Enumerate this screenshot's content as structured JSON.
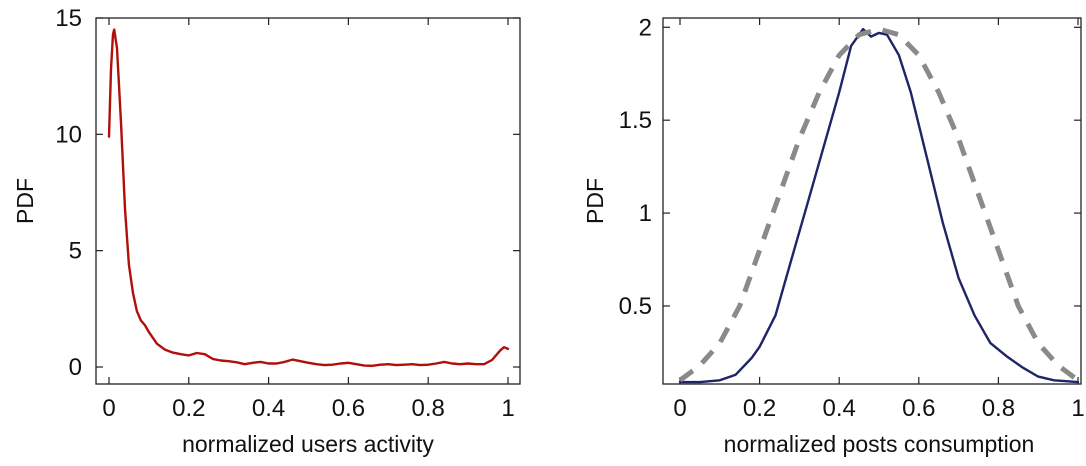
{
  "chart_data": [
    {
      "type": "line",
      "title": "",
      "xlabel": "normalized users activity",
      "ylabel": "PDF",
      "xlim": [
        0,
        1
      ],
      "ylim": [
        0,
        15
      ],
      "x_ticks": [
        "0",
        "0.2",
        "0.4",
        "0.6",
        "0.8",
        "1"
      ],
      "y_ticks": [
        "0",
        "5",
        "10",
        "15"
      ],
      "grid": false,
      "legend": "none",
      "series": [
        {
          "color": "#b00f0a",
          "style": "solid",
          "points": [
            [
              0.0,
              9.9
            ],
            [
              0.005,
              12.8
            ],
            [
              0.01,
              14.3
            ],
            [
              0.013,
              14.5
            ],
            [
              0.02,
              13.7
            ],
            [
              0.03,
              10.5
            ],
            [
              0.04,
              6.8
            ],
            [
              0.05,
              4.4
            ],
            [
              0.06,
              3.2
            ],
            [
              0.07,
              2.4
            ],
            [
              0.08,
              2.0
            ],
            [
              0.09,
              1.8
            ],
            [
              0.1,
              1.5
            ],
            [
              0.12,
              1.0
            ],
            [
              0.14,
              0.75
            ],
            [
              0.16,
              0.62
            ],
            [
              0.18,
              0.55
            ],
            [
              0.2,
              0.5
            ],
            [
              0.22,
              0.6
            ],
            [
              0.24,
              0.55
            ],
            [
              0.26,
              0.35
            ],
            [
              0.28,
              0.28
            ],
            [
              0.3,
              0.25
            ],
            [
              0.32,
              0.2
            ],
            [
              0.34,
              0.12
            ],
            [
              0.36,
              0.18
            ],
            [
              0.38,
              0.22
            ],
            [
              0.4,
              0.15
            ],
            [
              0.42,
              0.15
            ],
            [
              0.44,
              0.22
            ],
            [
              0.46,
              0.32
            ],
            [
              0.48,
              0.25
            ],
            [
              0.5,
              0.18
            ],
            [
              0.52,
              0.12
            ],
            [
              0.54,
              0.08
            ],
            [
              0.56,
              0.1
            ],
            [
              0.58,
              0.15
            ],
            [
              0.6,
              0.18
            ],
            [
              0.62,
              0.12
            ],
            [
              0.64,
              0.06
            ],
            [
              0.66,
              0.05
            ],
            [
              0.68,
              0.1
            ],
            [
              0.7,
              0.12
            ],
            [
              0.72,
              0.08
            ],
            [
              0.74,
              0.1
            ],
            [
              0.76,
              0.12
            ],
            [
              0.78,
              0.08
            ],
            [
              0.8,
              0.1
            ],
            [
              0.82,
              0.15
            ],
            [
              0.84,
              0.22
            ],
            [
              0.86,
              0.15
            ],
            [
              0.88,
              0.12
            ],
            [
              0.9,
              0.15
            ],
            [
              0.92,
              0.12
            ],
            [
              0.94,
              0.12
            ],
            [
              0.96,
              0.3
            ],
            [
              0.98,
              0.7
            ],
            [
              0.99,
              0.85
            ],
            [
              1.0,
              0.78
            ]
          ]
        }
      ]
    },
    {
      "type": "line",
      "title": "",
      "xlabel": "normalized posts consumption",
      "ylabel": "PDF",
      "xlim": [
        0,
        1
      ],
      "ylim": [
        0.08,
        2.05
      ],
      "x_ticks": [
        "0",
        "0.2",
        "0.4",
        "0.6",
        "0.8",
        "1"
      ],
      "y_ticks": [
        "0.5",
        "1",
        "1.5",
        "2"
      ],
      "grid": false,
      "legend": "none",
      "series": [
        {
          "color": "#1e2466",
          "style": "solid",
          "points": [
            [
              0.0,
              0.09
            ],
            [
              0.05,
              0.09
            ],
            [
              0.1,
              0.1
            ],
            [
              0.14,
              0.13
            ],
            [
              0.18,
              0.22
            ],
            [
              0.2,
              0.28
            ],
            [
              0.24,
              0.45
            ],
            [
              0.28,
              0.75
            ],
            [
              0.32,
              1.05
            ],
            [
              0.36,
              1.35
            ],
            [
              0.4,
              1.65
            ],
            [
              0.43,
              1.9
            ],
            [
              0.46,
              1.99
            ],
            [
              0.48,
              1.95
            ],
            [
              0.5,
              1.97
            ],
            [
              0.52,
              1.96
            ],
            [
              0.55,
              1.85
            ],
            [
              0.58,
              1.65
            ],
            [
              0.62,
              1.3
            ],
            [
              0.66,
              0.95
            ],
            [
              0.7,
              0.65
            ],
            [
              0.74,
              0.45
            ],
            [
              0.78,
              0.3
            ],
            [
              0.82,
              0.23
            ],
            [
              0.86,
              0.17
            ],
            [
              0.9,
              0.12
            ],
            [
              0.94,
              0.1
            ],
            [
              1.0,
              0.09
            ]
          ]
        },
        {
          "color": "#8a8a8a",
          "style": "dashed",
          "points": [
            [
              0.0,
              0.1
            ],
            [
              0.05,
              0.18
            ],
            [
              0.1,
              0.3
            ],
            [
              0.15,
              0.5
            ],
            [
              0.2,
              0.8
            ],
            [
              0.25,
              1.1
            ],
            [
              0.3,
              1.4
            ],
            [
              0.35,
              1.65
            ],
            [
              0.4,
              1.85
            ],
            [
              0.45,
              1.96
            ],
            [
              0.5,
              1.99
            ],
            [
              0.55,
              1.96
            ],
            [
              0.6,
              1.85
            ],
            [
              0.65,
              1.65
            ],
            [
              0.7,
              1.4
            ],
            [
              0.75,
              1.1
            ],
            [
              0.8,
              0.8
            ],
            [
              0.85,
              0.5
            ],
            [
              0.9,
              0.3
            ],
            [
              0.95,
              0.18
            ],
            [
              1.0,
              0.1
            ]
          ]
        }
      ]
    }
  ]
}
